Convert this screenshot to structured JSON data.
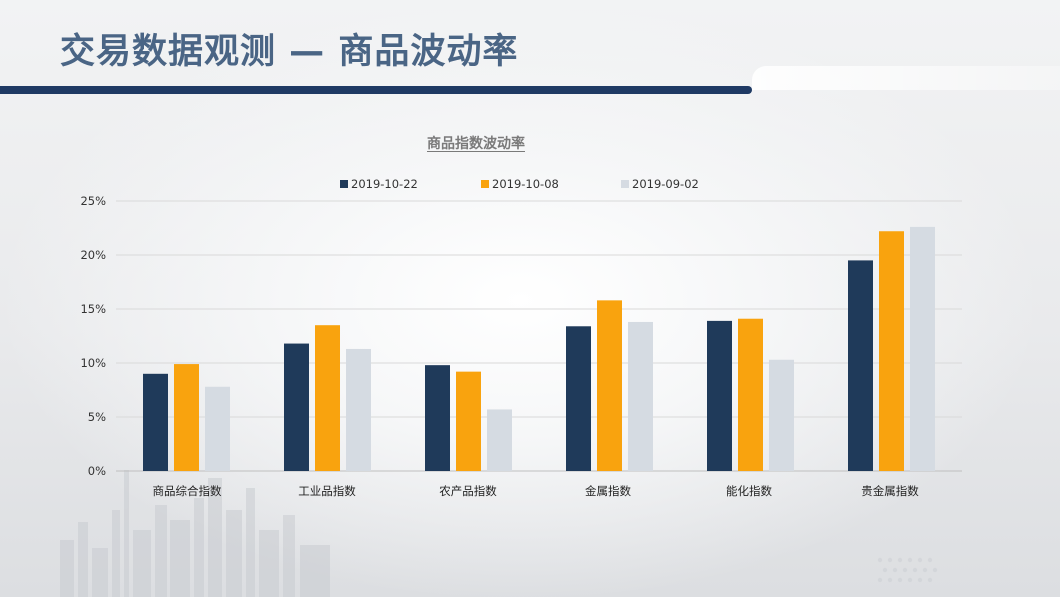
{
  "slide": {
    "title": "交易数据观测 — 商品波动率"
  },
  "colors": {
    "title_text": "#4a6585",
    "title_rule": "#1f3a64"
  },
  "chart_data": {
    "type": "bar",
    "title": "商品指数波动率",
    "xlabel": "",
    "ylabel": "",
    "categories": [
      "商品综合指数",
      "工业品指数",
      "农产品指数",
      "金属指数",
      "能化指数",
      "贵金属指数"
    ],
    "series": [
      {
        "name": "2019-10-22",
        "color": "#1f3a5a",
        "values": [
          9.0,
          11.8,
          9.8,
          13.4,
          13.9,
          19.5
        ]
      },
      {
        "name": "2019-10-08",
        "color": "#f9a30e",
        "values": [
          9.9,
          13.5,
          9.2,
          15.8,
          14.1,
          22.2
        ]
      },
      {
        "name": "2019-09-02",
        "color": "#d5dbe2",
        "values": [
          7.8,
          11.3,
          5.7,
          13.8,
          10.3,
          22.6
        ]
      }
    ],
    "ylim": [
      0,
      25
    ],
    "yticks": [
      0,
      5,
      10,
      15,
      20,
      25
    ],
    "ytick_labels": [
      "0%",
      "5%",
      "10%",
      "15%",
      "20%",
      "25%"
    ],
    "grid": true,
    "legend_position": "top"
  }
}
